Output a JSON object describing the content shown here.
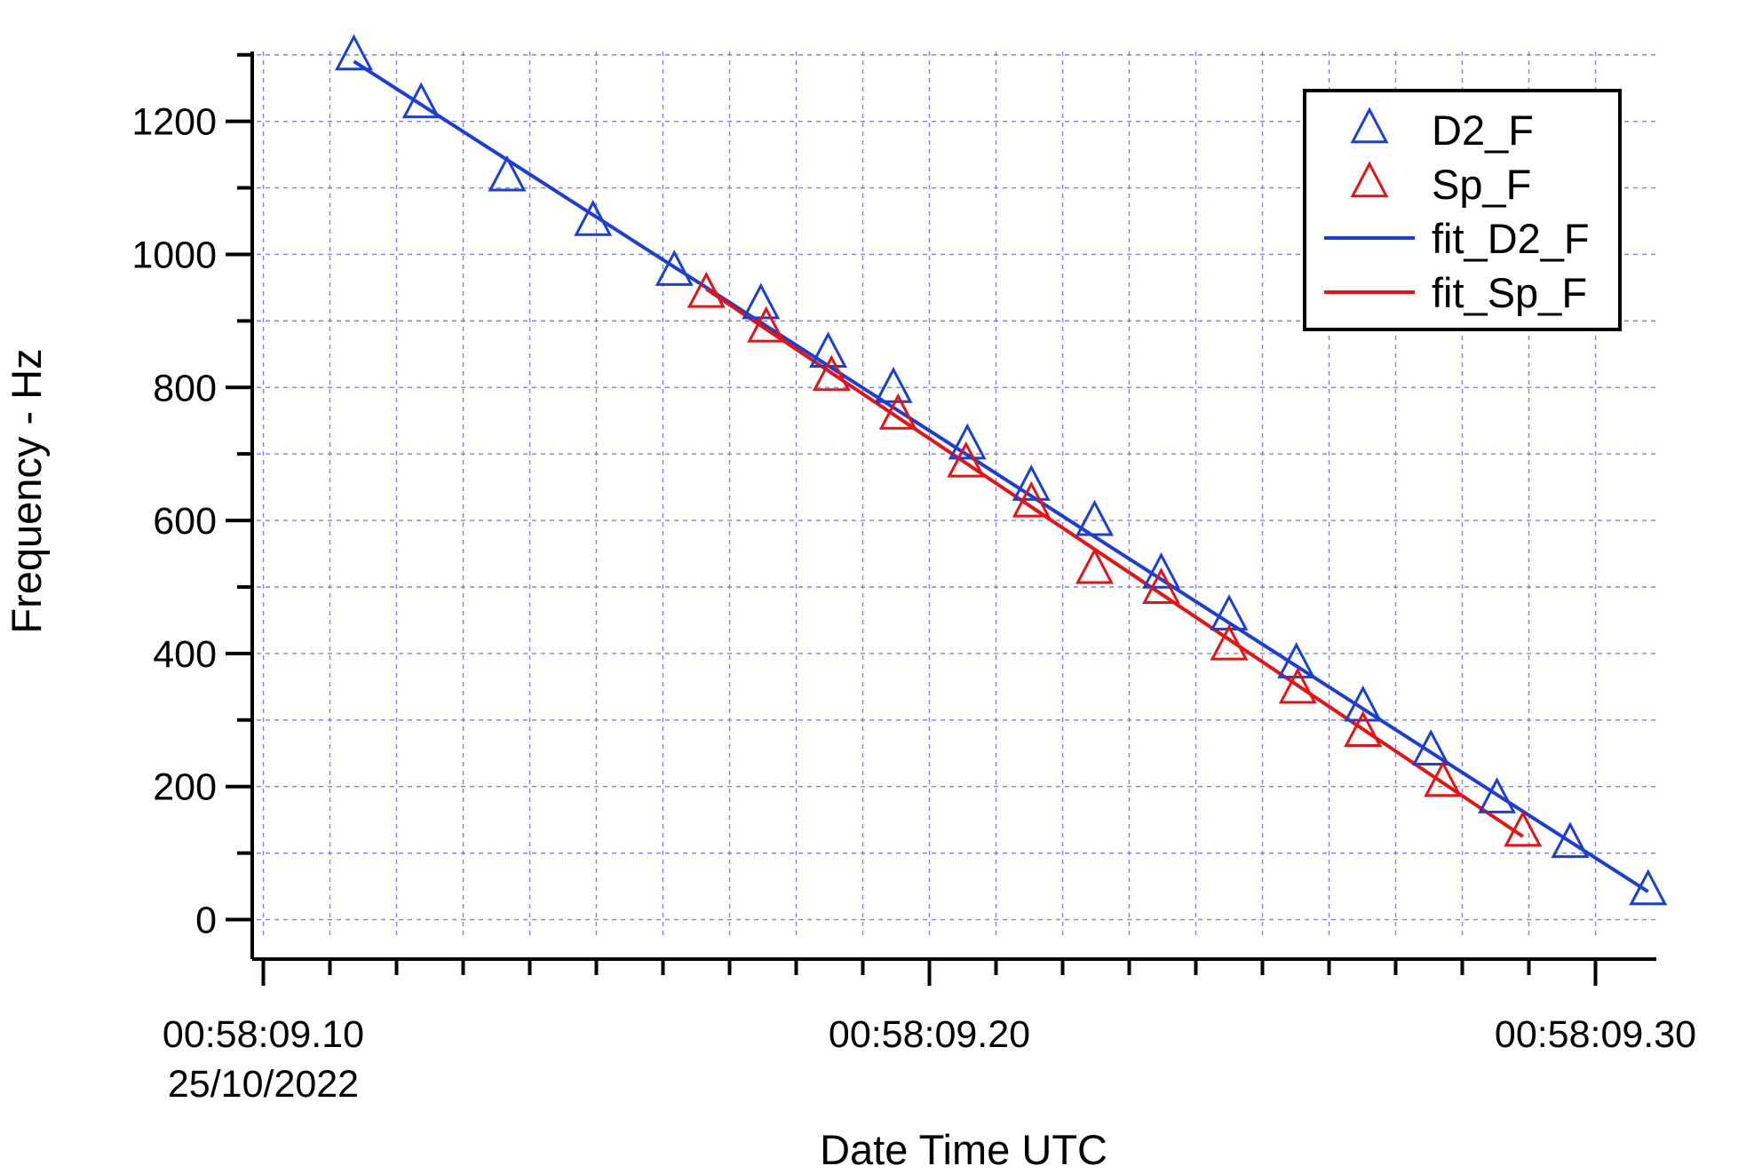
{
  "chart_data": {
    "type": "scatter",
    "xlabel": "Date Time UTC",
    "ylabel": "Frequency - Hz",
    "x_units": "seconds past 00:58:09 on 25/10/2022",
    "xlim": [
      9.099,
      9.309
    ],
    "ylim": [
      -30,
      1305
    ],
    "x_ticks": [
      {
        "value": 9.1,
        "label": "00:58:09.10",
        "sublabel": "25/10/2022"
      },
      {
        "value": 9.2,
        "label": "00:58:09.20",
        "sublabel": ""
      },
      {
        "value": 9.3,
        "label": "00:58:09.30",
        "sublabel": ""
      }
    ],
    "x_minor_ticks": [
      9.11,
      9.12,
      9.13,
      9.14,
      9.15,
      9.16,
      9.17,
      9.18,
      9.19,
      9.21,
      9.22,
      9.23,
      9.24,
      9.25,
      9.26,
      9.27,
      9.28,
      9.29
    ],
    "y_ticks": [
      {
        "value": 0,
        "label": "0"
      },
      {
        "value": 200,
        "label": "200"
      },
      {
        "value": 400,
        "label": "400"
      },
      {
        "value": 600,
        "label": "600"
      },
      {
        "value": 800,
        "label": "800"
      },
      {
        "value": 1000,
        "label": "1000"
      },
      {
        "value": 1200,
        "label": "1200"
      }
    ],
    "y_minor_ticks": [
      100,
      300,
      500,
      700,
      900,
      1100,
      1300
    ],
    "grid": true,
    "legend_position": "top-right",
    "series": [
      {
        "name": "D2_F",
        "kind": "markers",
        "marker": "triangle",
        "color": "#1b3fd6",
        "points": [
          [
            9.1136,
            1297
          ],
          [
            9.1237,
            1225
          ],
          [
            9.1366,
            1115
          ],
          [
            9.1495,
            1048
          ],
          [
            9.1617,
            973
          ],
          [
            9.1747,
            923
          ],
          [
            9.1848,
            850
          ],
          [
            9.1946,
            797
          ],
          [
            9.2057,
            712
          ],
          [
            9.2153,
            650
          ],
          [
            9.2248,
            597
          ],
          [
            9.2348,
            518
          ],
          [
            9.245,
            455
          ],
          [
            9.2551,
            383
          ],
          [
            9.2651,
            318
          ],
          [
            9.2753,
            252
          ],
          [
            9.2852,
            180
          ],
          [
            9.2962,
            113
          ],
          [
            9.3079,
            42
          ]
        ]
      },
      {
        "name": "Sp_F",
        "kind": "markers",
        "marker": "triangle",
        "color": "#e81212",
        "points": [
          [
            9.1665,
            940
          ],
          [
            9.1755,
            888
          ],
          [
            9.1853,
            815
          ],
          [
            9.1953,
            757
          ],
          [
            9.2055,
            685
          ],
          [
            9.2153,
            625
          ],
          [
            9.2248,
            525
          ],
          [
            9.2348,
            495
          ],
          [
            9.245,
            410
          ],
          [
            9.2553,
            345
          ],
          [
            9.2651,
            280
          ],
          [
            9.2771,
            205
          ],
          [
            9.2891,
            130
          ]
        ]
      },
      {
        "name": "fit_D2_F",
        "kind": "line",
        "color": "#1b3fd6",
        "points": [
          [
            9.1136,
            1290
          ],
          [
            9.3079,
            42
          ]
        ]
      },
      {
        "name": "fit_Sp_F",
        "kind": "line",
        "color": "#e81212",
        "points": [
          [
            9.1665,
            948
          ],
          [
            9.2891,
            125
          ]
        ]
      }
    ]
  }
}
